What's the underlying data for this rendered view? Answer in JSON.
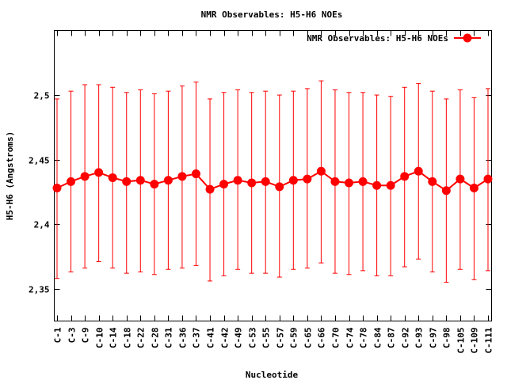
{
  "chart_data": {
    "type": "line",
    "title": "NMR Observables: H5-H6 NOEs",
    "xlabel": "Nucleotide",
    "ylabel": "H5-H6 (Angstroms)",
    "ylim": [
      2.325,
      2.55
    ],
    "yticks": [
      2.35,
      2.4,
      2.45,
      2.5
    ],
    "ytick_labels": [
      "2,35",
      "2,4",
      "2,45",
      "2,5"
    ],
    "grid": false,
    "legend_position": "top-right",
    "categories": [
      "C-1",
      "C-3",
      "C-9",
      "C-10",
      "C-14",
      "C-18",
      "C-22",
      "C-28",
      "C-31",
      "C-36",
      "C-37",
      "C-41",
      "C-42",
      "C-49",
      "C-53",
      "C-55",
      "C-57",
      "C-59",
      "C-65",
      "C-66",
      "C-70",
      "C-74",
      "C-78",
      "C-84",
      "C-87",
      "C-92",
      "C-93",
      "C-97",
      "C-98",
      "C-105",
      "C-109",
      "C-111"
    ],
    "series": [
      {
        "name": "NMR Observables: H5-H6 NOEs",
        "color": "#ff0000",
        "values": [
          2.428,
          2.433,
          2.437,
          2.44,
          2.436,
          2.433,
          2.434,
          2.431,
          2.434,
          2.437,
          2.439,
          2.427,
          2.431,
          2.434,
          2.432,
          2.433,
          2.429,
          2.434,
          2.435,
          2.441,
          2.433,
          2.432,
          2.433,
          2.43,
          2.43,
          2.437,
          2.441,
          2.433,
          2.426,
          2.435,
          2.428,
          2.435
        ],
        "err_low": [
          2.358,
          2.363,
          2.366,
          2.371,
          2.366,
          2.362,
          2.363,
          2.361,
          2.365,
          2.366,
          2.368,
          2.356,
          2.36,
          2.365,
          2.362,
          2.362,
          2.359,
          2.365,
          2.366,
          2.37,
          2.362,
          2.361,
          2.364,
          2.36,
          2.36,
          2.367,
          2.373,
          2.363,
          2.355,
          2.365,
          2.357,
          2.364
        ],
        "err_high": [
          2.497,
          2.503,
          2.508,
          2.508,
          2.506,
          2.502,
          2.504,
          2.501,
          2.503,
          2.507,
          2.51,
          2.497,
          2.502,
          2.504,
          2.502,
          2.503,
          2.5,
          2.503,
          2.505,
          2.511,
          2.504,
          2.502,
          2.502,
          2.5,
          2.499,
          2.506,
          2.509,
          2.503,
          2.497,
          2.504,
          2.498,
          2.505
        ]
      }
    ]
  }
}
